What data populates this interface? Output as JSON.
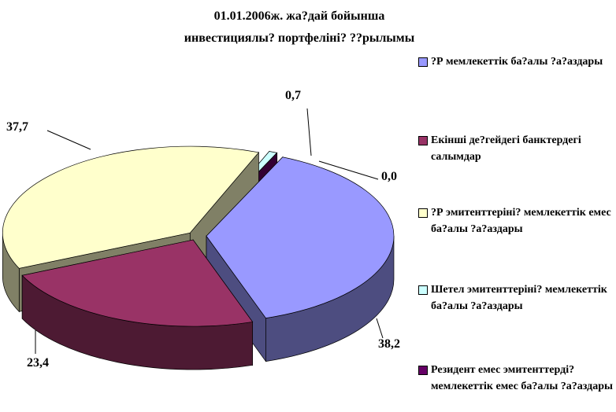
{
  "chart_data": {
    "type": "pie3d",
    "title": [
      "01.01.2006ж. жа?дай бойынша",
      "инвестициялы? портфеліні? ??рылымы"
    ],
    "categories": [
      "?Р мемлекеттік ба?алы ?а?аздары",
      "Екінші де?гейдегі банктердегі салымдар",
      "?Р эмитенттеріні? мемлекеттік емес ба?алы ?а?аздары",
      "Шетел эмитенттеріні? мемлекеттік ба?алы ?а?аздары",
      "Резидент емес эмитенттерді? мемлекеттік емес ба?алы ?а?аздары"
    ],
    "values": [
      38.2,
      23.4,
      37.7,
      0.7,
      0.0
    ],
    "value_labels": [
      "38,2",
      "23,4",
      "37,7",
      "0,7",
      "0,0"
    ],
    "colors": [
      "#9999ff",
      "#993366",
      "#ffffcc",
      "#ccffff",
      "#660066"
    ],
    "legend": "right"
  }
}
